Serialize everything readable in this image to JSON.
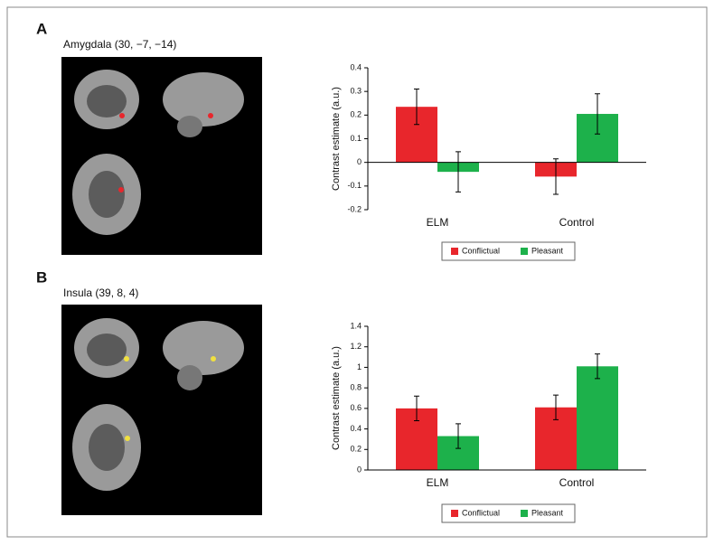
{
  "chart_data": [
    {
      "type": "bar",
      "panel_label": "A",
      "title": "Amygdala (30, −7, −14)",
      "ylabel": "Contrast estimate (a.u.)",
      "categories": [
        "ELM",
        "Control"
      ],
      "series": [
        {
          "name": "Conflictual",
          "color": "#e8262c",
          "values": [
            0.235,
            -0.06
          ],
          "errors": [
            0.075,
            0.075
          ]
        },
        {
          "name": "Pleasant",
          "color": "#1db14b",
          "values": [
            -0.04,
            0.205
          ],
          "errors": [
            0.085,
            0.085
          ]
        }
      ],
      "ylim": [
        -0.2,
        0.4
      ],
      "yticks": [
        -0.2,
        -0.1,
        0,
        0.1,
        0.2,
        0.3,
        0.4
      ]
    },
    {
      "type": "bar",
      "panel_label": "B",
      "title": "Insula (39, 8, 4)",
      "ylabel": "Contrast estimate (a.u.)",
      "categories": [
        "ELM",
        "Control"
      ],
      "series": [
        {
          "name": "Conflictual",
          "color": "#e8262c",
          "values": [
            0.6,
            0.61
          ],
          "errors": [
            0.12,
            0.12
          ]
        },
        {
          "name": "Pleasant",
          "color": "#1db14b",
          "values": [
            0.33,
            1.01
          ],
          "errors": [
            0.12,
            0.12
          ]
        }
      ],
      "ylim": [
        0,
        1.4
      ],
      "yticks": [
        0,
        0.2,
        0.4,
        0.6,
        0.8,
        1,
        1.2,
        1.4
      ]
    }
  ]
}
